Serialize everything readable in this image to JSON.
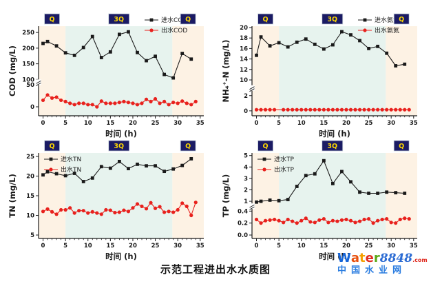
{
  "figure": {
    "caption": "示范工程进出水水质图"
  },
  "watermark": {
    "word_letters": [
      {
        "ch": "W",
        "color": "#1565d8"
      },
      {
        "ch": "a",
        "color": "#e8500f"
      },
      {
        "ch": "t",
        "color": "#f5a000"
      },
      {
        "ch": "e",
        "color": "#e02b20"
      },
      {
        "ch": "r",
        "color": "#5aa817"
      }
    ],
    "number": "8848",
    "number_color": "#2b6bd3",
    "tld": ".com",
    "tld_color": "#e02b20",
    "subtitle": "中国水业网",
    "subtitle_color": "#2b7de0"
  },
  "colors": {
    "band_peach": "#fdf2e4",
    "band_teal": "#e7f3ee",
    "phase_box": "#1b1b64",
    "phase_box_border": "#c9d2d9",
    "phase_text": "#ffd900",
    "influent": "#1a1a1a",
    "effluent": "#e8211d",
    "axis": "#1a1a1a",
    "text": "#1a1a1a"
  },
  "chart_data": [
    {
      "id": "cod",
      "type": "line",
      "xlabel": "时间 (h)",
      "ylabel": "COD (mg/L)",
      "x_range": [
        -1,
        35.8
      ],
      "x_ticks": [
        0,
        5,
        10,
        15,
        20,
        25,
        30,
        35
      ],
      "y_ticks": [
        {
          "v": 0,
          "t": "0"
        },
        {
          "v": 50,
          "t": "50"
        },
        {
          "v": 100,
          "t": "100"
        },
        {
          "v": 150,
          "t": "150"
        },
        {
          "v": 200,
          "t": "200"
        },
        {
          "v": 250,
          "t": "250"
        }
      ],
      "y_anchors": [
        [
          0,
          0.1
        ],
        [
          50,
          0.345
        ],
        [
          100,
          0.405
        ],
        [
          270,
          1.0
        ]
      ],
      "y_break_frac": 0.375,
      "bands": [
        {
          "from": -1,
          "to": 5,
          "color": "band_peach",
          "label": "Q"
        },
        {
          "from": 5,
          "to": 28.8,
          "color": "band_teal",
          "label": "3Q"
        },
        {
          "from": 28.8,
          "to": 35.8,
          "color": "band_peach",
          "label": "Q"
        }
      ],
      "legend": {
        "pos": "top-right",
        "raised": true
      },
      "series": [
        {
          "name": "进水COD",
          "marker": "square",
          "color_key": "influent",
          "x": [
            0,
            1,
            3,
            5,
            7,
            9,
            11,
            13,
            15,
            17,
            19,
            21,
            23,
            25,
            27,
            29,
            31,
            33
          ],
          "y": [
            215,
            221,
            207,
            185,
            177,
            202,
            237,
            170,
            188,
            244,
            252,
            186,
            160,
            174,
            116,
            105,
            183,
            165
          ]
        },
        {
          "name": "出水COD",
          "marker": "circle",
          "color_key": "effluent",
          "x": [
            0,
            1,
            2,
            3,
            4,
            5,
            6,
            7,
            8,
            9,
            10,
            11,
            12,
            13,
            14,
            15,
            16,
            17,
            18,
            19,
            20,
            21,
            22,
            23,
            24,
            25,
            26,
            27,
            28,
            29,
            30,
            31,
            32,
            33,
            34
          ],
          "y": [
            15,
            27,
            20,
            22,
            15,
            12,
            8,
            5,
            8,
            8,
            5,
            5,
            0,
            13,
            8,
            8,
            8,
            10,
            12,
            10,
            8,
            5,
            8,
            17,
            12,
            18,
            8,
            12,
            5,
            10,
            8,
            13,
            8,
            5,
            12
          ]
        }
      ]
    },
    {
      "id": "nh4",
      "type": "line",
      "xlabel": "时间 (h)",
      "ylabel": "NH₄⁺-N (mg/L)",
      "x_range": [
        -1,
        35.8
      ],
      "x_ticks": [
        0,
        5,
        10,
        15,
        20,
        25,
        30,
        35
      ],
      "y_ticks": [
        {
          "v": 0,
          "t": "0"
        },
        {
          "v": 2,
          "t": "2"
        },
        {
          "v": 10,
          "t": "10"
        },
        {
          "v": 12,
          "t": "12"
        },
        {
          "v": 14,
          "t": "14"
        },
        {
          "v": 16,
          "t": "16"
        },
        {
          "v": 18,
          "t": "18"
        },
        {
          "v": 20,
          "t": "20"
        }
      ],
      "y_anchors": [
        [
          0,
          0.055
        ],
        [
          2,
          0.225
        ],
        [
          10,
          0.4
        ],
        [
          20,
          0.985
        ]
      ],
      "y_break_frac": 0.31,
      "bands": [
        {
          "from": -1,
          "to": 5,
          "color": "band_peach",
          "label": "Q"
        },
        {
          "from": 5,
          "to": 28.8,
          "color": "band_teal",
          "label": "3Q"
        },
        {
          "from": 28.8,
          "to": 35.8,
          "color": "band_peach",
          "label": "Q"
        }
      ],
      "legend": {
        "pos": "top-right",
        "raised": true
      },
      "series": [
        {
          "name": "进水氨氮",
          "marker": "square",
          "color_key": "influent",
          "x": [
            0,
            1,
            3,
            5,
            7,
            9,
            11,
            13,
            15,
            17,
            19,
            21,
            23,
            25,
            27,
            29,
            31,
            33
          ],
          "y": [
            14.7,
            18.2,
            16.5,
            17.1,
            16.3,
            17.2,
            17.8,
            16.8,
            15.9,
            16.7,
            19.2,
            18.6,
            17.5,
            16.0,
            16.4,
            15.1,
            12.7,
            13.0
          ]
        },
        {
          "name": "出水氨氮",
          "marker": "circle",
          "color_key": "effluent",
          "x": [
            0,
            1,
            2,
            3,
            4,
            6,
            7,
            8,
            9,
            10,
            11,
            12,
            13,
            14,
            15,
            16,
            17,
            18,
            19,
            20,
            21,
            22,
            23,
            24,
            25,
            26,
            27,
            28,
            29,
            30,
            31,
            32,
            33,
            34
          ],
          "y": [
            0.15,
            0.15,
            0.15,
            0.15,
            0.15,
            0.15,
            0.15,
            0.15,
            0.15,
            0.15,
            0.15,
            0.15,
            0.15,
            0.15,
            0.15,
            0.15,
            0.15,
            0.15,
            0.15,
            0.15,
            0.15,
            0.15,
            0.15,
            0.15,
            0.15,
            0.15,
            0.15,
            0.15,
            0.15,
            0.15,
            0.15,
            0.15,
            0.15,
            0.15
          ]
        }
      ]
    },
    {
      "id": "tn",
      "type": "line",
      "xlabel": "时间 (h)",
      "ylabel": "TN (mg/L)",
      "x_range": [
        -1,
        35.8
      ],
      "x_ticks": [
        0,
        5,
        10,
        15,
        20,
        25,
        30,
        35
      ],
      "y_ticks": [
        {
          "v": 5,
          "t": "5"
        },
        {
          "v": 10,
          "t": "10"
        },
        {
          "v": 15,
          "t": "15"
        },
        {
          "v": 20,
          "t": "20"
        },
        {
          "v": 25,
          "t": "25"
        }
      ],
      "y_anchors": [
        [
          5,
          0.04
        ],
        [
          25,
          0.96
        ]
      ],
      "y_break_frac": null,
      "bands": [
        {
          "from": -1,
          "to": 5,
          "color": "band_peach",
          "label": "Q"
        },
        {
          "from": 5,
          "to": 28.8,
          "color": "band_teal",
          "label": "3Q"
        },
        {
          "from": 28.8,
          "to": 35.8,
          "color": "band_peach",
          "label": "Q"
        }
      ],
      "legend": {
        "pos": "top-left",
        "raised": false
      },
      "series": [
        {
          "name": "进水TN",
          "marker": "square",
          "color_key": "influent",
          "x": [
            0,
            1,
            3,
            5,
            7,
            9,
            11,
            13,
            15,
            17,
            19,
            21,
            23,
            25,
            27,
            29,
            31,
            33
          ],
          "y": [
            20.3,
            21.1,
            20.6,
            20.1,
            20.7,
            18.6,
            19.5,
            22.4,
            22.0,
            23.7,
            21.9,
            23.0,
            22.6,
            22.6,
            21.2,
            21.8,
            22.7,
            24.4
          ]
        },
        {
          "name": "出水TN",
          "marker": "circle",
          "color_key": "effluent",
          "x": [
            0,
            1,
            2,
            3,
            4,
            5,
            6,
            7,
            8,
            9,
            10,
            11,
            12,
            13,
            14,
            15,
            16,
            17,
            18,
            19,
            20,
            21,
            22,
            23,
            24,
            25,
            26,
            27,
            28,
            29,
            30,
            31,
            32,
            33,
            34
          ],
          "y": [
            11.0,
            11.6,
            10.9,
            10.3,
            11.4,
            11.4,
            11.9,
            10.6,
            11.2,
            11.2,
            10.6,
            10.9,
            10.6,
            10.3,
            11.4,
            11.3,
            10.7,
            10.8,
            11.3,
            11.0,
            11.9,
            12.9,
            12.3,
            11.7,
            13.2,
            11.8,
            12.2,
            10.8,
            11.0,
            10.8,
            11.4,
            13.1,
            12.3,
            10.0,
            13.3
          ]
        }
      ]
    },
    {
      "id": "tp",
      "type": "line",
      "xlabel": "时间 (h)",
      "ylabel": "TP (mg/L)",
      "x_range": [
        -1,
        35.8
      ],
      "x_ticks": [
        0,
        5,
        10,
        15,
        20,
        25,
        30,
        35
      ],
      "y_ticks": [
        {
          "v": 0,
          "t": "0.0"
        },
        {
          "v": 0.2,
          "t": "0.2"
        },
        {
          "v": 0.4,
          "t": "0.4"
        },
        {
          "v": 1,
          "t": "1"
        },
        {
          "v": 2,
          "t": "2"
        },
        {
          "v": 3,
          "t": "3"
        },
        {
          "v": 4,
          "t": "4"
        },
        {
          "v": 5,
          "t": "5"
        }
      ],
      "y_anchors": [
        [
          0,
          0.04
        ],
        [
          0.4,
          0.32
        ],
        [
          1,
          0.435
        ],
        [
          5,
          0.97
        ]
      ],
      "y_break_frac": 0.378,
      "bands": [
        {
          "from": -1,
          "to": 5,
          "color": "band_peach",
          "label": "Q"
        },
        {
          "from": 5,
          "to": 28.8,
          "color": "band_teal",
          "label": "3Q"
        },
        {
          "from": 28.8,
          "to": 35.8,
          "color": "band_peach",
          "label": "Q"
        }
      ],
      "legend": {
        "pos": "top-left",
        "raised": false
      },
      "series": [
        {
          "name": "进水TP",
          "marker": "square",
          "color_key": "influent",
          "x": [
            0,
            1,
            3,
            5,
            7,
            9,
            11,
            13,
            15,
            17,
            19,
            21,
            23,
            25,
            27,
            29,
            31,
            33
          ],
          "y": [
            0.95,
            1.0,
            1.1,
            1.05,
            1.15,
            2.3,
            3.25,
            3.4,
            4.55,
            2.55,
            3.6,
            2.7,
            1.8,
            1.7,
            1.7,
            1.8,
            1.75,
            1.7
          ]
        },
        {
          "name": "出水TP",
          "marker": "circle",
          "color_key": "effluent",
          "x": [
            0,
            1,
            2,
            3,
            4,
            5,
            6,
            7,
            8,
            9,
            10,
            11,
            12,
            13,
            14,
            15,
            16,
            17,
            18,
            19,
            20,
            21,
            22,
            23,
            24,
            25,
            26,
            27,
            28,
            29,
            30,
            31,
            32,
            33,
            34
          ],
          "y": [
            0.26,
            0.2,
            0.24,
            0.25,
            0.26,
            0.24,
            0.21,
            0.26,
            0.23,
            0.2,
            0.24,
            0.28,
            0.22,
            0.21,
            0.25,
            0.27,
            0.21,
            0.24,
            0.23,
            0.25,
            0.26,
            0.24,
            0.21,
            0.23,
            0.26,
            0.27,
            0.2,
            0.24,
            0.26,
            0.27,
            0.21,
            0.2,
            0.26,
            0.28,
            0.27
          ]
        }
      ]
    }
  ]
}
